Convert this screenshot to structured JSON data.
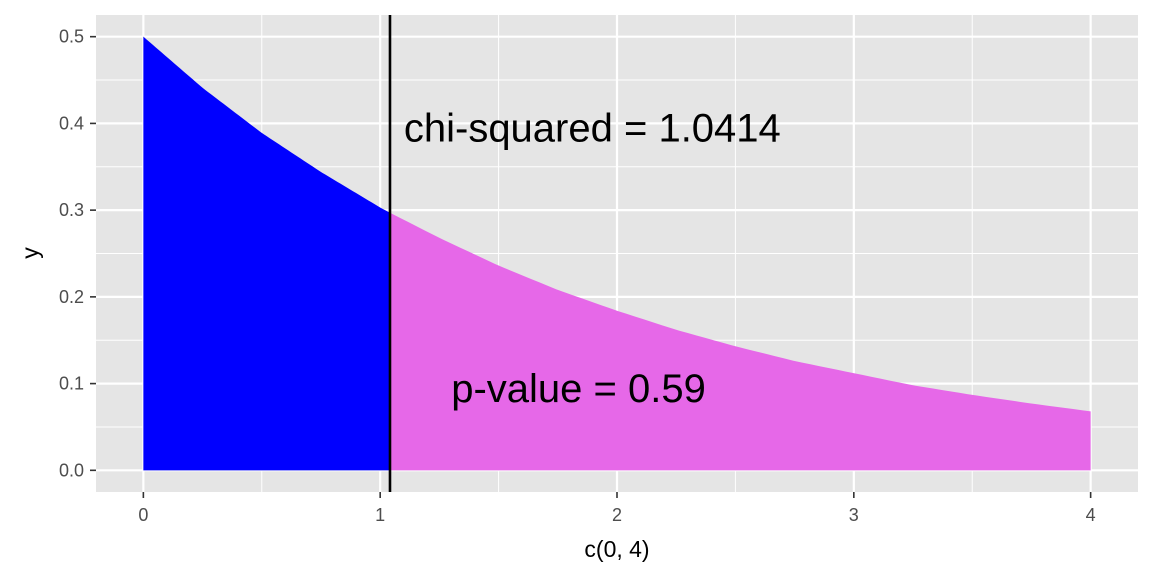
{
  "chart_data": {
    "type": "area",
    "xlabel": "c(0, 4)",
    "ylabel": "y",
    "xlim": [
      -0.2,
      4.2
    ],
    "ylim": [
      -0.025,
      0.525
    ],
    "x_ticks": [
      0,
      1,
      2,
      3,
      4
    ],
    "x_tick_labels": [
      "0",
      "1",
      "2",
      "3",
      "4"
    ],
    "y_ticks": [
      0.0,
      0.1,
      0.2,
      0.3,
      0.4,
      0.5
    ],
    "y_tick_labels": [
      "0.0",
      "0.1",
      "0.2",
      "0.3",
      "0.4",
      "0.5"
    ],
    "grid": true,
    "curve": {
      "x": [
        0,
        0.25,
        0.5,
        0.75,
        1.0,
        1.0414,
        1.25,
        1.5,
        1.75,
        2.0,
        2.25,
        2.5,
        2.75,
        3.0,
        3.25,
        3.5,
        3.75,
        4.0
      ],
      "y": [
        0.5,
        0.441,
        0.389,
        0.344,
        0.303,
        0.297,
        0.268,
        0.236,
        0.208,
        0.184,
        0.162,
        0.143,
        0.126,
        0.112,
        0.098,
        0.087,
        0.077,
        0.068
      ]
    },
    "regions": [
      {
        "from": 0,
        "to": 1.0414,
        "color": "#0000ff"
      },
      {
        "from": 1.0414,
        "to": 4,
        "color": "#e668e8"
      }
    ],
    "vline": {
      "x": 1.0414,
      "color": "#000000"
    },
    "annotations": [
      {
        "text": "chi-squared = 1.0414",
        "x": 1.1,
        "y": 0.395
      },
      {
        "text": "p-value = 0.59",
        "x": 1.3,
        "y": 0.095
      }
    ],
    "colors": {
      "panel_background": "#e5e5e5",
      "grid": "#ffffff"
    }
  }
}
